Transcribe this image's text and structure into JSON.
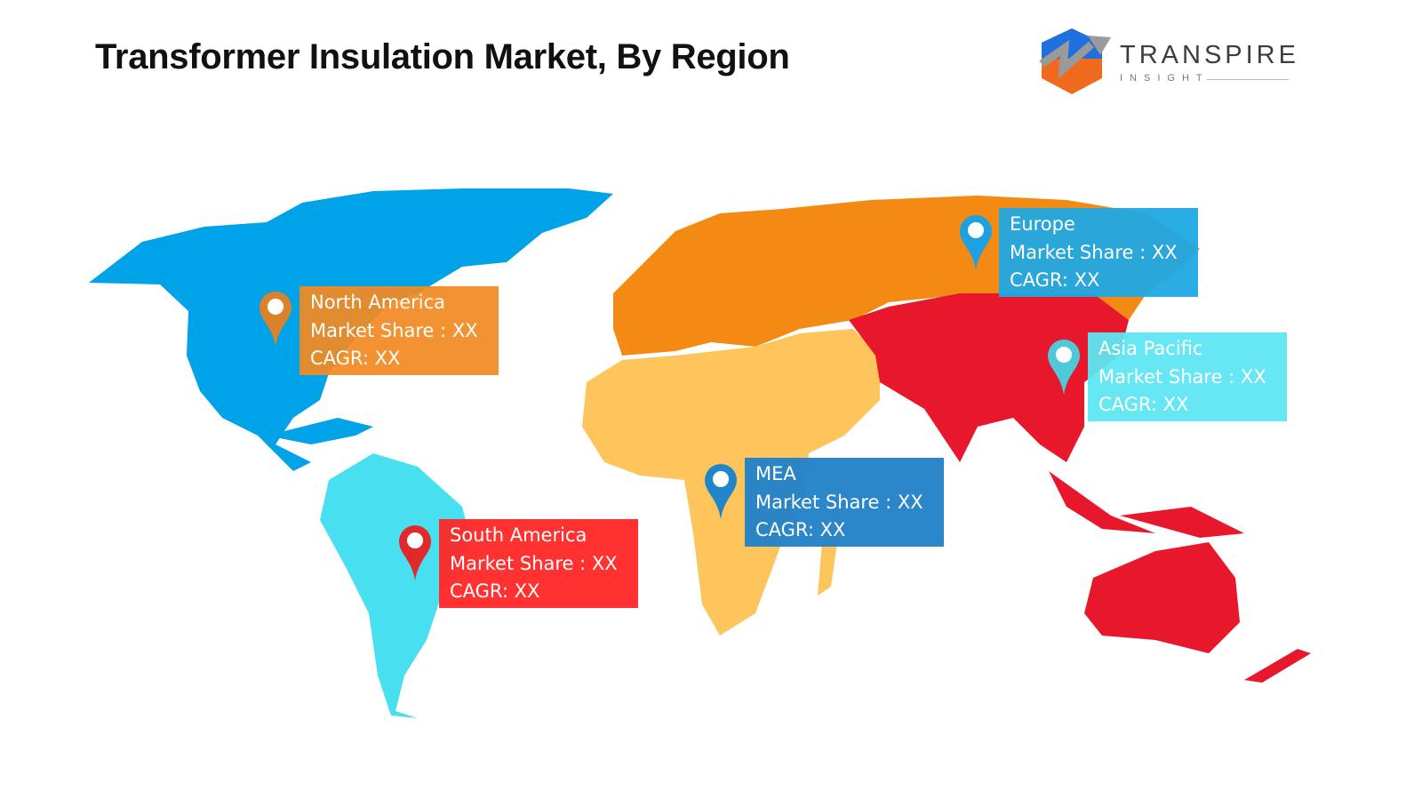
{
  "title": "Transformer Insulation Market, By Region",
  "logo": {
    "word": "TRANSPIRE",
    "sub": "INSIGHT"
  },
  "colors": {
    "north_america": "#00a2e8",
    "europe_russia": "#f28a14",
    "mea": "#fdc55b",
    "asia_pacific": "#e8182c",
    "south_america": "#48dff0"
  },
  "regions": [
    {
      "name": "North America",
      "share": "Market Share : XX",
      "cagr": "CAGR: XX",
      "box_color": "#f28a22",
      "pin_color": "#d9822b"
    },
    {
      "name": "Europe",
      "share": "Market Share : XX",
      "cagr": "CAGR: XX",
      "box_color": "#1fa8e4",
      "pin_color": "#1fa0e0"
    },
    {
      "name": "Asia Pacific",
      "share": "Market Share : XX",
      "cagr": "CAGR: XX",
      "box_color": "#5fe6f2",
      "pin_color": "#4fc9d9"
    },
    {
      "name": "MEA",
      "share": "Market Share : XX",
      "cagr": "CAGR: XX",
      "box_color": "#2483c8",
      "pin_color": "#1f86c9"
    },
    {
      "name": "South America",
      "share": "Market Share : XX",
      "cagr": "CAGR: XX",
      "box_color": "#ff2626",
      "pin_color": "#e02a2a"
    }
  ]
}
